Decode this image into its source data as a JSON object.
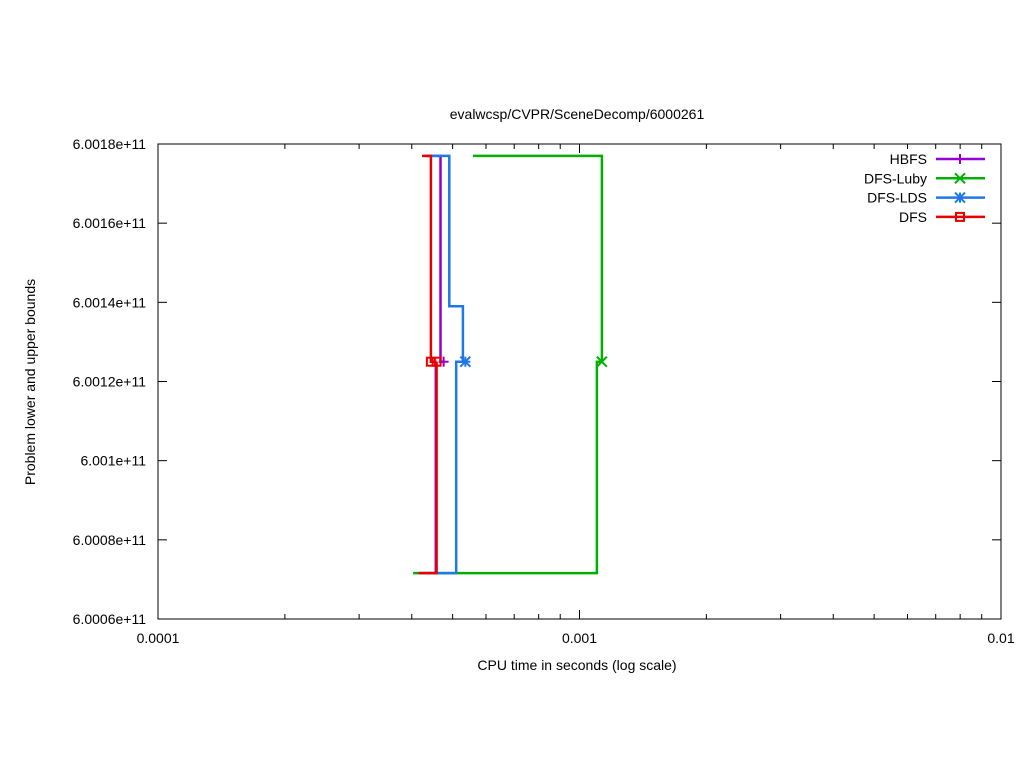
{
  "chart_data": {
    "type": "line",
    "title": "evalwcsp/CVPR/SceneDecomp/6000261",
    "xlabel": "CPU time in seconds (log scale)",
    "ylabel": "Problem lower and upper bounds",
    "xscale": "log",
    "xlim": [
      0.0001,
      0.01
    ],
    "ylim": [
      600060000000,
      600180000000
    ],
    "x_ticks": [
      {
        "value": 0.0001,
        "label": "0.0001"
      },
      {
        "value": 0.001,
        "label": "0.001"
      },
      {
        "value": 0.01,
        "label": "0.01"
      }
    ],
    "y_ticks": [
      {
        "value": 600060000000,
        "label": "6.0006e+11"
      },
      {
        "value": 600080000000,
        "label": "6.0008e+11"
      },
      {
        "value": 600100000000,
        "label": "6.001e+11"
      },
      {
        "value": 600120000000,
        "label": "6.0012e+11"
      },
      {
        "value": 600140000000,
        "label": "6.0014e+11"
      },
      {
        "value": 600160000000,
        "label": "6.0016e+11"
      },
      {
        "value": 600180000000,
        "label": "6.0018e+11"
      }
    ],
    "grid": false,
    "legend_position": "top-right",
    "series": [
      {
        "name": "HBFS",
        "color": "#9400d3",
        "marker": "plus",
        "upper": [
          [
            0.000432,
            600177000000
          ],
          [
            0.000468,
            600177000000
          ],
          [
            0.000468,
            600125000000
          ],
          [
            0.000476,
            600125000000
          ]
        ],
        "lower": [
          [
            0.000432,
            600071600000
          ],
          [
            0.000456,
            600071600000
          ],
          [
            0.000456,
            600125000000
          ]
        ],
        "final": [
          0.000476,
          600125000000
        ]
      },
      {
        "name": "DFS-Luby",
        "color": "#00b000",
        "marker": "x",
        "upper": [
          [
            0.000559,
            600177000000
          ],
          [
            0.00113,
            600177000000
          ],
          [
            0.00113,
            600125000000
          ]
        ],
        "lower": [
          [
            0.000403,
            600071600000
          ],
          [
            0.0011,
            600071600000
          ],
          [
            0.0011,
            600125000000
          ],
          [
            0.00113,
            600125000000
          ]
        ],
        "final": [
          0.00113,
          600125000000
        ]
      },
      {
        "name": "DFS-LDS",
        "color": "#1e78e6",
        "marker": "star",
        "upper": [
          [
            0.000436,
            600177000000
          ],
          [
            0.000491,
            600177000000
          ],
          [
            0.000491,
            600139000000
          ],
          [
            0.000529,
            600139000000
          ],
          [
            0.000529,
            600125000000
          ],
          [
            0.000536,
            600125000000
          ]
        ],
        "lower": [
          [
            0.000415,
            600071600000
          ],
          [
            0.00051,
            600071600000
          ],
          [
            0.00051,
            600125000000
          ],
          [
            0.000536,
            600125000000
          ]
        ],
        "final": [
          0.000536,
          600125000000
        ]
      },
      {
        "name": "DFS",
        "color": "#e60000",
        "marker": "square",
        "upper": [
          [
            0.000423,
            600177000000
          ],
          [
            0.000444,
            600177000000
          ],
          [
            0.000444,
            600125000000
          ],
          [
            0.000458,
            600125000000
          ]
        ],
        "lower": [
          [
            0.000415,
            600071600000
          ],
          [
            0.000458,
            600071600000
          ],
          [
            0.000458,
            600125000000
          ]
        ],
        "final": [
          0.000444,
          600125000000
        ],
        "final2": [
          0.000458,
          600125000000
        ]
      }
    ]
  }
}
